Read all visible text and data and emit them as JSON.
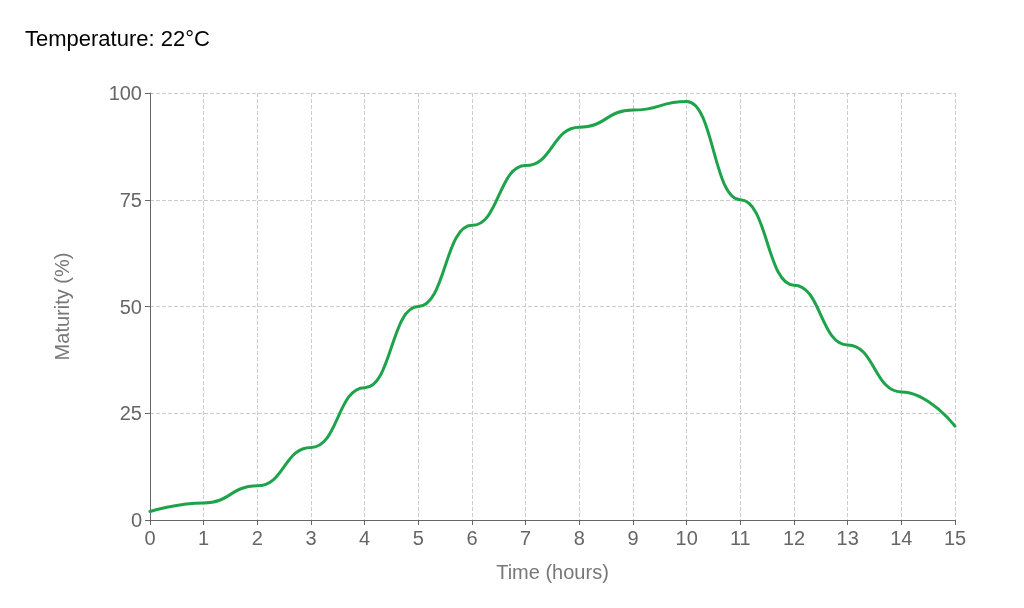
{
  "chart_data": {
    "type": "line",
    "title": "Temperature: 22°C",
    "xlabel": "Time (hours)",
    "ylabel": "Maturity (%)",
    "x": [
      0,
      1,
      2,
      3,
      4,
      5,
      6,
      7,
      8,
      9,
      10,
      11,
      12,
      13,
      14,
      15
    ],
    "series": [
      {
        "color": "#1fa34a",
        "values": [
          2,
          4,
          8,
          17,
          31,
          50,
          69,
          83,
          92,
          96,
          98,
          75,
          55,
          41,
          30,
          22
        ]
      }
    ],
    "xlim": [
      0,
      15
    ],
    "xticks": [
      0,
      1,
      2,
      3,
      4,
      5,
      6,
      7,
      8,
      9,
      10,
      11,
      12,
      13,
      14,
      15
    ],
    "ylim": [
      0,
      100
    ],
    "yticks": [
      0,
      25,
      50,
      75,
      100
    ],
    "grid": true,
    "marker": "none",
    "line_style": "solid"
  }
}
